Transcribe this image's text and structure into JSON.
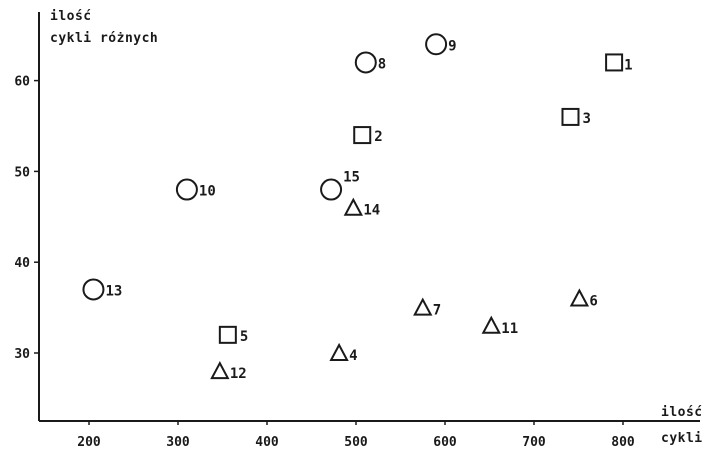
{
  "chart_data": {
    "type": "scatter",
    "y_axis_title": [
      "ilość",
      "cykli różnych"
    ],
    "x_axis_title": [
      "ilość",
      "cykli"
    ],
    "xlim": [
      150,
      820
    ],
    "ylim": [
      22,
      67
    ],
    "x_ticks": [
      "200",
      "300",
      "400",
      "500",
      "600",
      "700",
      "800"
    ],
    "y_ticks": [
      "30",
      "40",
      "50",
      "60"
    ],
    "grid": false,
    "points": [
      {
        "label": "1",
        "marker": "square",
        "x": 790,
        "y": 62
      },
      {
        "label": "2",
        "marker": "square",
        "x": 507,
        "y": 54
      },
      {
        "label": "3",
        "marker": "square",
        "x": 741,
        "y": 56
      },
      {
        "label": "4",
        "marker": "triangle",
        "x": 481,
        "y": 30
      },
      {
        "label": "5",
        "marker": "square",
        "x": 356,
        "y": 32
      },
      {
        "label": "6",
        "marker": "triangle",
        "x": 751,
        "y": 36
      },
      {
        "label": "7",
        "marker": "triangle",
        "x": 575,
        "y": 35
      },
      {
        "label": "8",
        "marker": "circle",
        "x": 511,
        "y": 62
      },
      {
        "label": "9",
        "marker": "circle",
        "x": 590,
        "y": 64
      },
      {
        "label": "10",
        "marker": "circle",
        "x": 310,
        "y": 48
      },
      {
        "label": "11",
        "marker": "triangle",
        "x": 652,
        "y": 33
      },
      {
        "label": "12",
        "marker": "triangle",
        "x": 347,
        "y": 28
      },
      {
        "label": "13",
        "marker": "circle",
        "x": 205,
        "y": 37
      },
      {
        "label": "14",
        "marker": "triangle",
        "x": 497,
        "y": 46
      },
      {
        "label": "15",
        "marker": "circle",
        "x": 472,
        "y": 48
      }
    ]
  }
}
